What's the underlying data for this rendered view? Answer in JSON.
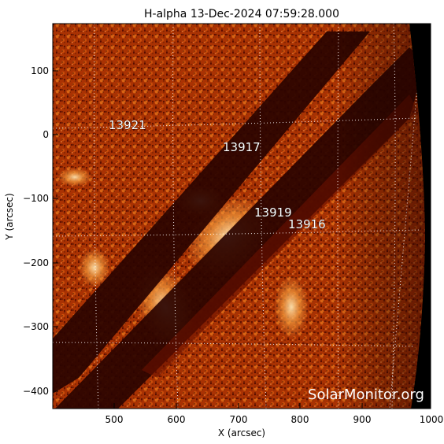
{
  "title": "H-alpha 13-Dec-2024 07:59:28.000",
  "x_axis": {
    "label": "X (arcsec)",
    "ticks": [
      "500",
      "600",
      "700",
      "800",
      "900",
      "1000"
    ]
  },
  "y_axis": {
    "label": "Y (arcsec)",
    "ticks": [
      "100",
      "0",
      "−100",
      "−200",
      "−300",
      "−400"
    ]
  },
  "active_regions": [
    "13921",
    "13917",
    "13919",
    "13916"
  ],
  "watermark": "SolarMonitor.org",
  "colors": {
    "solar_dark": "#3a0600",
    "solar_mid": "#b83a05",
    "solar_bright": "#f7a548",
    "filament": "#2a0200",
    "space": "#000000"
  }
}
